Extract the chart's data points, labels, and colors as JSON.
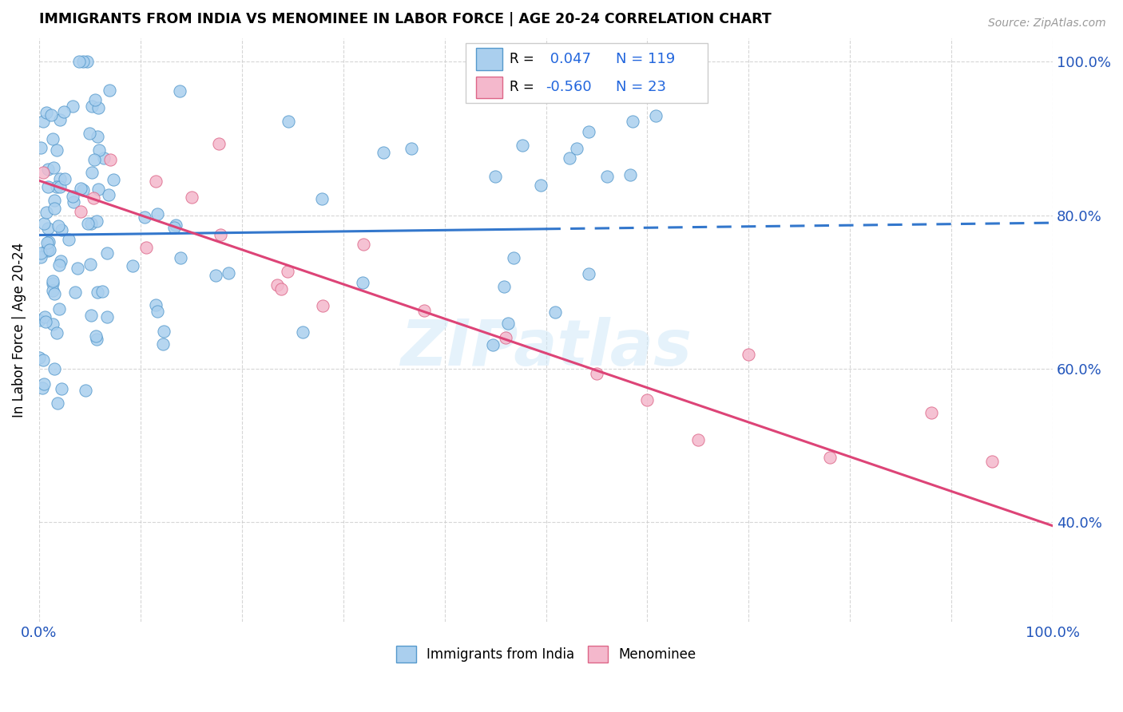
{
  "title": "IMMIGRANTS FROM INDIA VS MENOMINEE IN LABOR FORCE | AGE 20-24 CORRELATION CHART",
  "source": "Source: ZipAtlas.com",
  "ylabel": "In Labor Force | Age 20-24",
  "xlim": [
    0.0,
    1.0
  ],
  "ylim": [
    0.27,
    1.03
  ],
  "x_ticks": [
    0.0,
    0.1,
    0.2,
    0.3,
    0.4,
    0.5,
    0.6,
    0.7,
    0.8,
    0.9,
    1.0
  ],
  "x_tick_labels": [
    "0.0%",
    "",
    "",
    "",
    "",
    "",
    "",
    "",
    "",
    "",
    "100.0%"
  ],
  "y_ticks": [
    0.4,
    0.6,
    0.8,
    1.0
  ],
  "right_y_tick_labels": [
    "40.0%",
    "60.0%",
    "80.0%",
    "100.0%"
  ],
  "india_color": "#aacfee",
  "india_edge_color": "#5599cc",
  "menominee_color": "#f4b8cc",
  "menominee_edge_color": "#dd6688",
  "india_line_color": "#3377cc",
  "menominee_line_color": "#dd4477",
  "india_R": 0.047,
  "india_N": 119,
  "menominee_R": -0.56,
  "menominee_N": 23,
  "watermark": "ZIPatlas",
  "legend_india_label": "Immigrants from India",
  "legend_menominee_label": "Menominee",
  "india_trend_x0": 0.0,
  "india_trend_y0": 0.774,
  "india_trend_x1": 0.5,
  "india_trend_y1": 0.782,
  "india_trend_solid_end": 0.5,
  "menominee_trend_x0": 0.0,
  "menominee_trend_y0": 0.845,
  "menominee_trend_x1": 1.0,
  "menominee_trend_y1": 0.395
}
